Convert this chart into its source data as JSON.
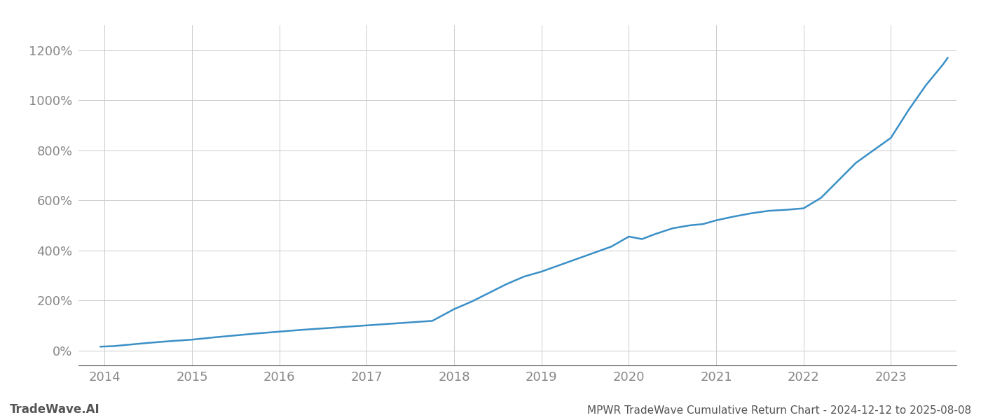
{
  "title": "MPWR TradeWave Cumulative Return Chart - 2024-12-12 to 2025-08-08",
  "watermark": "TradeWave.AI",
  "line_color": "#3a8fc7",
  "background_color": "#ffffff",
  "grid_color": "#cccccc",
  "x_years": [
    2014,
    2015,
    2016,
    2017,
    2018,
    2019,
    2020,
    2021,
    2022,
    2023
  ],
  "y_ticks": [
    0,
    200,
    400,
    600,
    800,
    1000,
    1200
  ],
  "xlim": [
    2013.7,
    2023.75
  ],
  "ylim": [
    -60,
    1300
  ],
  "data_x": [
    2013.95,
    2014.1,
    2014.25,
    2014.5,
    2014.75,
    2015.0,
    2015.25,
    2015.5,
    2015.75,
    2016.0,
    2016.25,
    2016.5,
    2016.75,
    2017.0,
    2017.25,
    2017.5,
    2017.75,
    2018.0,
    2018.2,
    2018.4,
    2018.6,
    2018.8,
    2019.0,
    2019.2,
    2019.4,
    2019.6,
    2019.8,
    2020.0,
    2020.15,
    2020.3,
    2020.5,
    2020.7,
    2020.85,
    2021.0,
    2021.2,
    2021.4,
    2021.6,
    2021.8,
    2022.0,
    2022.2,
    2022.4,
    2022.6,
    2022.8,
    2023.0,
    2023.2,
    2023.4,
    2023.6,
    2023.65
  ],
  "data_y": [
    15,
    17,
    22,
    30,
    37,
    43,
    52,
    60,
    68,
    75,
    82,
    88,
    94,
    100,
    106,
    112,
    118,
    165,
    195,
    230,
    265,
    295,
    315,
    340,
    365,
    390,
    415,
    455,
    445,
    465,
    488,
    500,
    505,
    520,
    535,
    548,
    558,
    562,
    568,
    610,
    680,
    750,
    800,
    850,
    960,
    1060,
    1145,
    1170
  ],
  "tick_label_color": "#888888",
  "axis_line_color": "#555555",
  "title_color": "#555555",
  "watermark_color": "#555555",
  "title_fontsize": 11,
  "tick_fontsize": 13,
  "watermark_fontsize": 12,
  "line_width": 1.8
}
